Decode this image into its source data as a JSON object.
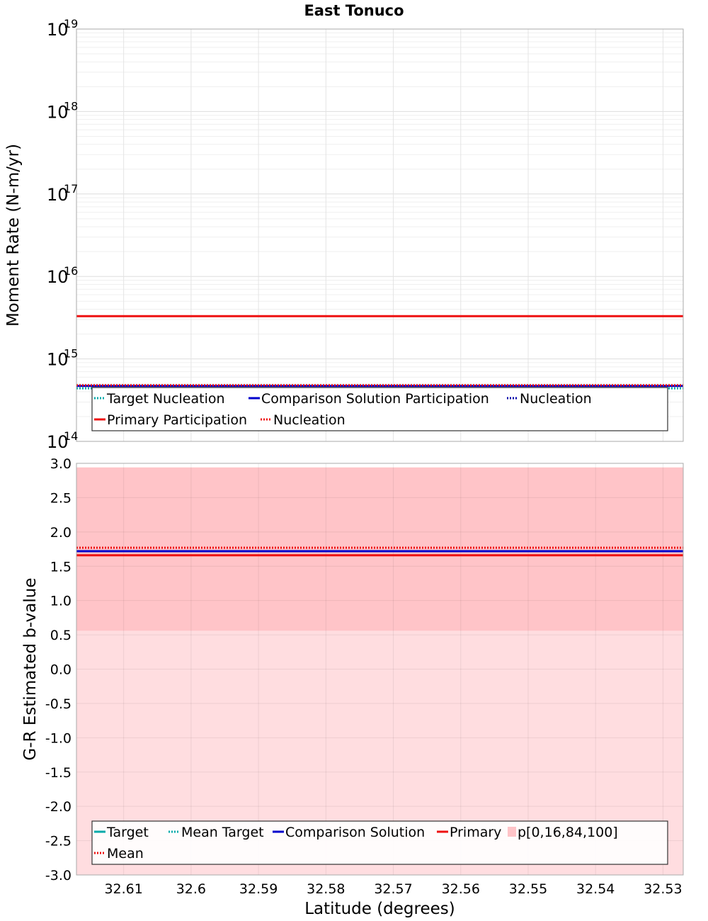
{
  "title": "East Tonuco",
  "chart_data": [
    {
      "type": "line",
      "title": "East Tonuco",
      "xlabel": "Latitude (degrees)",
      "ylabel": "Moment Rate (N-m/yr)",
      "xlim": [
        32.617,
        32.527
      ],
      "x_inverted": true,
      "ylim": [
        100000000000000.0,
        1e+19
      ],
      "yscale": "log",
      "grid": true,
      "xticks": [
        32.61,
        32.6,
        32.59,
        32.58,
        32.57,
        32.56,
        32.55,
        32.54,
        32.53
      ],
      "xtick_labels": [
        "32.61",
        "32.6",
        "32.59",
        "32.58",
        "32.57",
        "32.56",
        "32.55",
        "32.54",
        "32.53"
      ],
      "ytick_labels": [
        {
          "base": "10",
          "exp": "14"
        },
        {
          "base": "10",
          "exp": "15"
        },
        {
          "base": "10",
          "exp": "16"
        },
        {
          "base": "10",
          "exp": "17"
        },
        {
          "base": "10",
          "exp": "18"
        },
        {
          "base": "10",
          "exp": "19"
        }
      ],
      "series": [
        {
          "name": "Target Nucleation",
          "color": "#00aaaa",
          "style": "dotted",
          "x": [
            32.617,
            32.527
          ],
          "values": [
            440000000000000.0,
            440000000000000.0
          ]
        },
        {
          "name": "Comparison Solution Participation",
          "color": "#0000cc",
          "style": "solid",
          "x": [
            32.617,
            32.527
          ],
          "values": [
            470000000000000.0,
            470000000000000.0
          ]
        },
        {
          "name": "Nucleation",
          "color": "#0000aa",
          "style": "dotted",
          "x": [
            32.617,
            32.527
          ],
          "values": [
            475000000000000.0,
            475000000000000.0
          ]
        },
        {
          "name": "Primary Participation",
          "color": "#ee1111",
          "style": "solid",
          "x": [
            32.617,
            32.527
          ],
          "values": [
            3300000000000000.0,
            3300000000000000.0
          ]
        },
        {
          "name": "Nucleation",
          "color": "#ee1111",
          "style": "dotted",
          "x": [
            32.617,
            32.527
          ],
          "values": [
            480000000000000.0,
            480000000000000.0
          ]
        }
      ],
      "legend": {
        "placement": "bottom",
        "rows": [
          [
            {
              "label": "Target Nucleation",
              "color": "#00aaaa",
              "style": "dotted"
            },
            {
              "label": "Comparison Solution Participation",
              "color": "#0000cc",
              "style": "solid"
            },
            {
              "label": "Nucleation",
              "color": "#0000aa",
              "style": "dotted"
            }
          ],
          [
            {
              "label": "Primary Participation",
              "color": "#ee1111",
              "style": "solid"
            },
            {
              "label": "Nucleation",
              "color": "#ee1111",
              "style": "dotted"
            }
          ]
        ]
      }
    },
    {
      "type": "line",
      "xlabel": "Latitude (degrees)",
      "ylabel": "G-R Estimated b-value",
      "xlim": [
        32.617,
        32.527
      ],
      "x_inverted": true,
      "ylim": [
        -3.0,
        3.0
      ],
      "grid": true,
      "xticks": [
        32.61,
        32.6,
        32.59,
        32.58,
        32.57,
        32.56,
        32.55,
        32.54,
        32.53
      ],
      "xtick_labels": [
        "32.61",
        "32.6",
        "32.59",
        "32.58",
        "32.57",
        "32.56",
        "32.55",
        "32.54",
        "32.53"
      ],
      "yticks": [
        3.0,
        2.5,
        2.0,
        1.5,
        1.0,
        0.5,
        0.0,
        -0.5,
        -1.0,
        -1.5,
        -2.0,
        -2.5,
        -3.0
      ],
      "ytick_labels": [
        "3.0",
        "2.5",
        "2.0",
        "1.5",
        "1.0",
        "0.5",
        "0.0",
        "-0.5",
        "-1.0",
        "-1.5",
        "-2.0",
        "-2.5",
        "-3.0"
      ],
      "bands": [
        {
          "name": "p[0,16,84,100]",
          "range": "p0-p100",
          "low": -3.0,
          "high": 2.94,
          "color": "#ffdde0"
        },
        {
          "name": "p[0,16,84,100]",
          "range": "p16-p84",
          "low": 0.56,
          "high": 2.94,
          "color": "#ffc4c8"
        }
      ],
      "series": [
        {
          "name": "Target",
          "color": "#00aaaa",
          "style": "solid",
          "x": [
            32.617,
            32.527
          ],
          "values": [
            1.72,
            1.72
          ]
        },
        {
          "name": "Mean Target",
          "color": "#00aaaa",
          "style": "dotted",
          "x": [
            32.617,
            32.527
          ],
          "values": [
            1.72,
            1.72
          ]
        },
        {
          "name": "Comparison Solution",
          "color": "#0000cc",
          "style": "solid",
          "x": [
            32.617,
            32.527
          ],
          "values": [
            1.72,
            1.72
          ]
        },
        {
          "name": "Primary",
          "color": "#ee1111",
          "style": "solid",
          "x": [
            32.617,
            32.527
          ],
          "values": [
            1.66,
            1.66
          ]
        },
        {
          "name": "Mean",
          "color": "#ee1111",
          "style": "dotted",
          "x": [
            32.617,
            32.527
          ],
          "values": [
            1.77,
            1.77
          ]
        }
      ],
      "legend": {
        "placement": "bottom",
        "rows": [
          [
            {
              "label": "Target",
              "color": "#00aaaa",
              "style": "solid"
            },
            {
              "label": "Mean Target",
              "color": "#00aaaa",
              "style": "dotted"
            },
            {
              "label": "Comparison Solution",
              "color": "#0000cc",
              "style": "solid"
            },
            {
              "label": "Primary",
              "color": "#ee1111",
              "style": "solid"
            },
            {
              "label": "p[0,16,84,100]",
              "color": "#ffc4c8",
              "style": "box"
            }
          ],
          [
            {
              "label": "Mean",
              "color": "#ee1111",
              "style": "dotted"
            }
          ]
        ]
      }
    }
  ]
}
